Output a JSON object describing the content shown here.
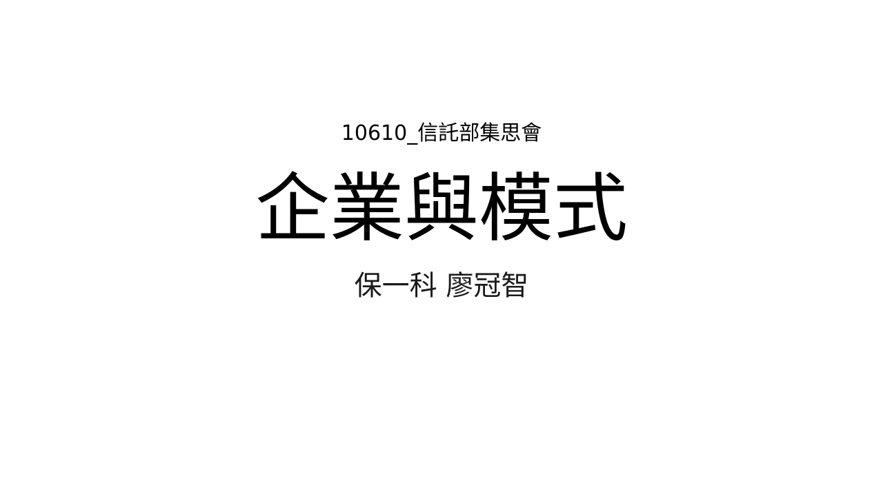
{
  "slide": {
    "event_label": "10610_信託部集思會",
    "title": "企業與模式",
    "presenter": "保一科  廖冠智"
  }
}
